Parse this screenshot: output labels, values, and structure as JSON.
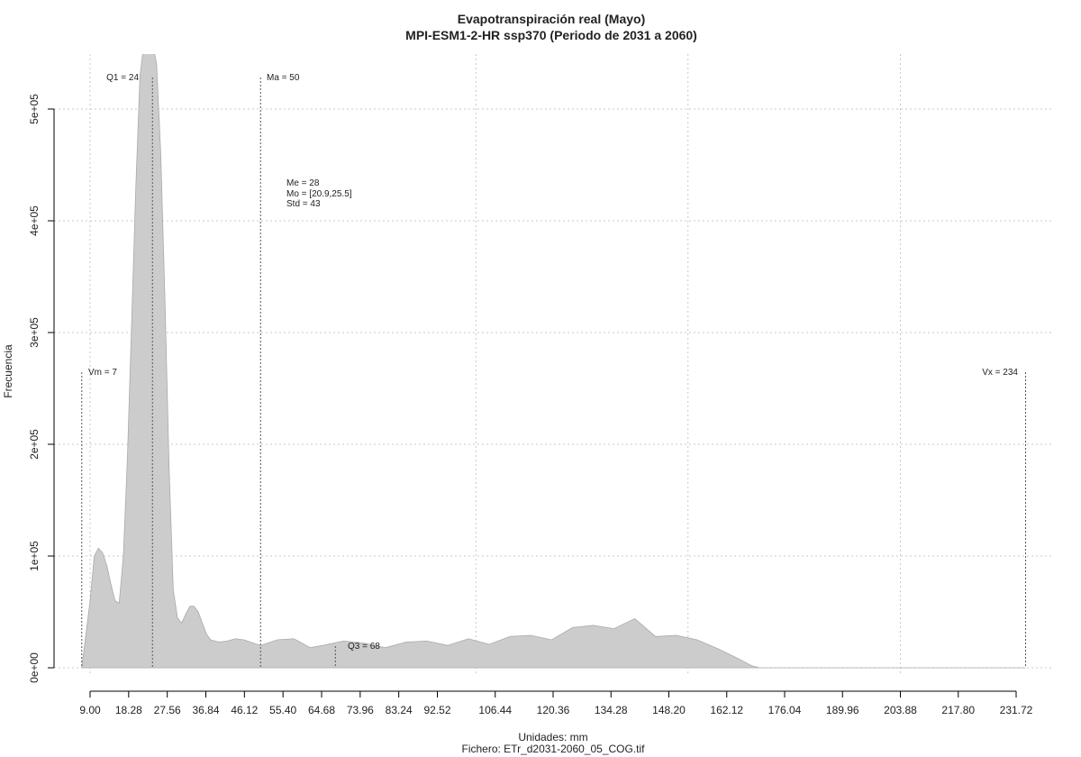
{
  "chart_data": {
    "type": "area",
    "title": "Evapotranspiración real (Mayo)",
    "subtitle": "MPI-ESM1-2-HR ssp370 (Periodo de 2031 a 2060)",
    "xlabel": "Unidades: mm",
    "ylabel": "Frecuencia",
    "file_label": "Fichero: ETr_d2031-2060_05_COG.tif",
    "xlim": [
      5,
      235
    ],
    "ylim": [
      -5000,
      550000
    ],
    "x_ticks": [
      9.0,
      18.28,
      27.56,
      36.84,
      46.12,
      55.4,
      64.68,
      73.96,
      83.24,
      92.52,
      106.44,
      120.36,
      134.28,
      148.2,
      162.12,
      176.04,
      189.96,
      203.88,
      217.8,
      231.72
    ],
    "x_tick_labels": [
      "9.00",
      "18.28",
      "27.56",
      "36.84",
      "46.12",
      "55.40",
      "64.68",
      "73.96",
      "83.24",
      "92.52",
      "106.44",
      "120.36",
      "134.28",
      "148.20",
      "162.12",
      "176.04",
      "189.96",
      "203.88",
      "217.80",
      "231.72"
    ],
    "y_ticks": [
      0,
      100000,
      200000,
      300000,
      400000,
      500000
    ],
    "y_tick_labels": [
      "0e+00",
      "1e+05",
      "2e+05",
      "3e+05",
      "4e+05",
      "5e+05"
    ],
    "grid_x": [
      9.0,
      101.8,
      152.8,
      203.88
    ],
    "grid": true,
    "fill_color": "#cccccc",
    "density": {
      "x": [
        7,
        9,
        10,
        11,
        12,
        13,
        14,
        15,
        16,
        17,
        18,
        19,
        20,
        21,
        22,
        23,
        24,
        25,
        26,
        27,
        28,
        29,
        30,
        31,
        32,
        33,
        34,
        35,
        36,
        37,
        38,
        40,
        42,
        44,
        46,
        50,
        54,
        58,
        62,
        65,
        70,
        75,
        80,
        85,
        90,
        95,
        100,
        105,
        110,
        115,
        120,
        125,
        130,
        135,
        140,
        145,
        150,
        155,
        160,
        165,
        168,
        170,
        234
      ],
      "y": [
        0,
        60000,
        100000,
        107000,
        103000,
        92000,
        75000,
        60000,
        58000,
        100000,
        190000,
        310000,
        430000,
        530000,
        560000,
        560000,
        560000,
        540000,
        460000,
        330000,
        180000,
        70000,
        45000,
        40000,
        48000,
        55000,
        55000,
        50000,
        40000,
        30000,
        25000,
        23000,
        24000,
        26000,
        25000,
        20000,
        25000,
        26000,
        18000,
        20000,
        24000,
        22000,
        18000,
        23000,
        24000,
        20000,
        26000,
        21000,
        28000,
        29000,
        25000,
        36000,
        38000,
        35000,
        44000,
        28000,
        29000,
        25000,
        17000,
        8000,
        2000,
        0,
        0
      ]
    },
    "annotations": {
      "vm": {
        "label": "Vm = 7",
        "x": 7
      },
      "q1": {
        "label": "Q1 = 24",
        "x": 24
      },
      "ma": {
        "label": "Ma = 50",
        "x": 50
      },
      "q3": {
        "label": "Q3 = 68",
        "x": 68
      },
      "vx": {
        "label": "Vx = 234",
        "x": 234
      },
      "stats": [
        "Me = 28",
        "Mo = [20.9,25.5]",
        "Std = 43"
      ]
    }
  }
}
